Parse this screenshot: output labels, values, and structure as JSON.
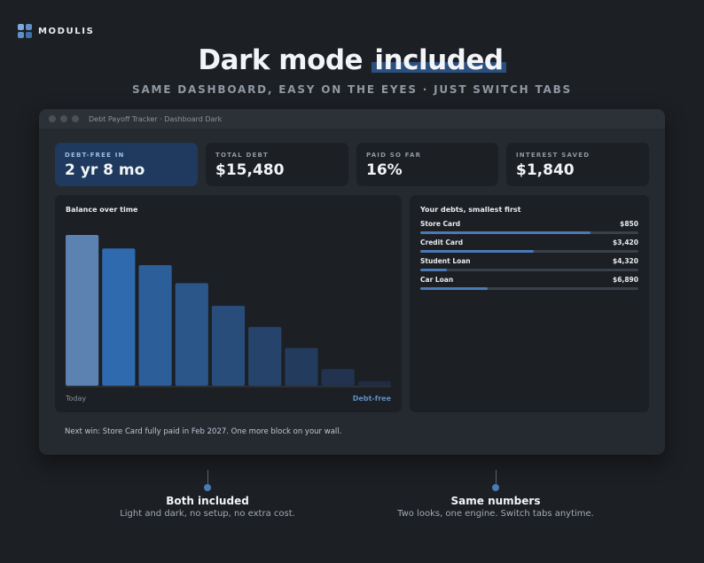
{
  "brand": {
    "name": "MODULIS"
  },
  "headline": {
    "prefix": "Dark mode",
    "highlight": "included"
  },
  "subhead": "SAME DASHBOARD, EASY ON THE EYES · JUST SWITCH TABS",
  "window": {
    "title": "Debt Payoff Tracker · Dashboard Dark"
  },
  "stats": [
    {
      "label": "DEBT-FREE IN",
      "value": "2 yr 8 mo"
    },
    {
      "label": "TOTAL DEBT",
      "value": "$15,480"
    },
    {
      "label": "PAID SO FAR",
      "value": "16%"
    },
    {
      "label": "INTEREST SAVED",
      "value": "$1,840"
    }
  ],
  "balance_panel": {
    "title": "Balance over time",
    "x_start": "Today",
    "x_end": "Debt-free"
  },
  "chart_data": {
    "type": "bar",
    "title": "Balance over time",
    "categories": [
      "Today",
      "",
      "",
      "",
      "",
      "",
      "",
      "",
      "Debt-free"
    ],
    "values": [
      100,
      91,
      80,
      68,
      53,
      39,
      25,
      11,
      3
    ],
    "ylim": [
      0,
      100
    ],
    "colors": [
      "#5b82b0",
      "#2e6aad",
      "#2c5f99",
      "#2a5689",
      "#284d7a",
      "#26446b",
      "#233b5c",
      "#21334e",
      "#1f2c42"
    ],
    "grid": false
  },
  "debts_panel": {
    "title": "Your debts, smallest first",
    "items": [
      {
        "name": "Store Card",
        "amount": "$850",
        "progress": 0.78
      },
      {
        "name": "Credit Card",
        "amount": "$3,420",
        "progress": 0.52
      },
      {
        "name": "Student Loan",
        "amount": "$4,320",
        "progress": 0.12
      },
      {
        "name": "Car Loan",
        "amount": "$6,890",
        "progress": 0.31
      }
    ]
  },
  "footer_note": "Next win: Store Card fully paid in Feb 2027. One more block on your wall.",
  "callouts": [
    {
      "title": "Both included",
      "text": "Light and dark, no setup, no extra cost."
    },
    {
      "title": "Same numbers",
      "text": "Two looks, one engine. Switch tabs anytime."
    }
  ],
  "colors": {
    "accent": "#4a7ab5",
    "background": "#1c1f23",
    "panel": "#1c1f24",
    "highlight": "#1f3a5e"
  }
}
